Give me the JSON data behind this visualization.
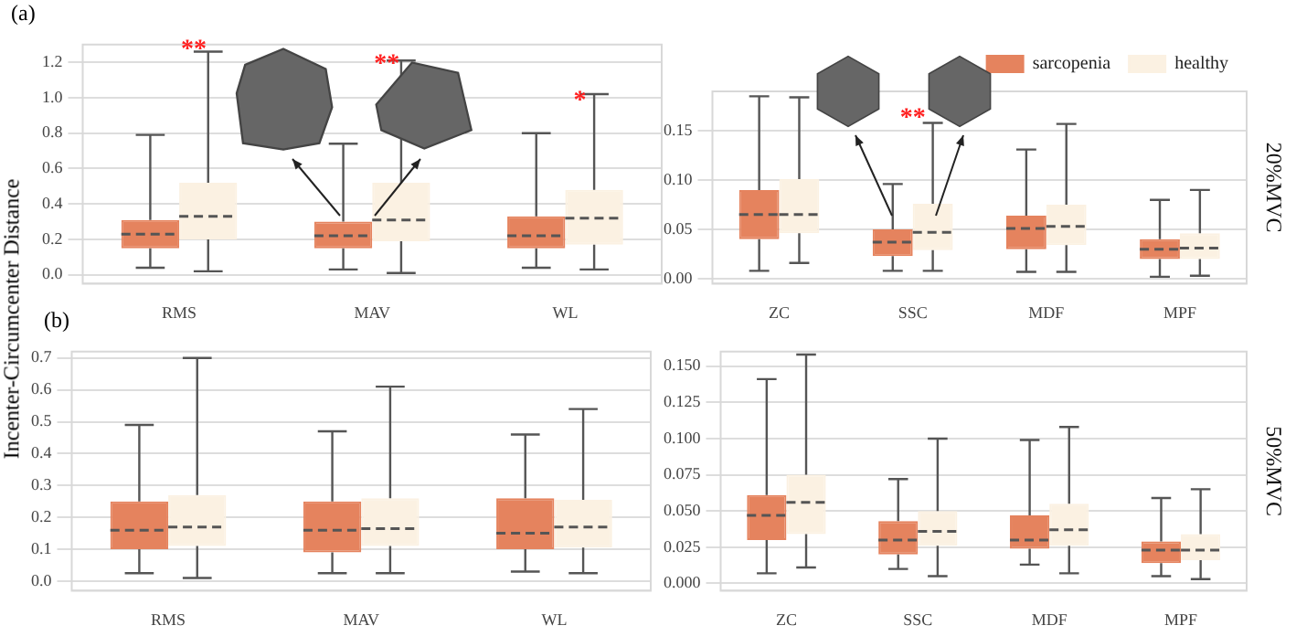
{
  "chart_data": [
    {
      "type": "box",
      "title": "(a)",
      "ylabel": "Incenter-Circumcenter Distance",
      "categories": [
        "RMS",
        "MAV",
        "WL"
      ],
      "ylim": [
        -0.05,
        1.3
      ],
      "yticks": [
        {
          "value": 0,
          "label": "0.0"
        },
        {
          "value": 0.2,
          "label": "0.2"
        },
        {
          "value": 0.4,
          "label": "0.4"
        },
        {
          "value": 0.6,
          "label": "0.6"
        },
        {
          "value": 0.8,
          "label": "0.8"
        },
        {
          "value": 1,
          "label": "1.0"
        },
        {
          "value": 1.2,
          "label": "1.2"
        }
      ],
      "grid": "y",
      "legend": false,
      "series": [
        {
          "color": "#e5835e",
          "boxes": [
            {
              "low": 0.04,
              "q1": 0.15,
              "median": 0.23,
              "q3": 0.31,
              "high": 0.79
            },
            {
              "low": 0.03,
              "q1": 0.15,
              "median": 0.22,
              "q3": 0.3,
              "high": 0.74
            },
            {
              "low": 0.04,
              "q1": 0.15,
              "median": 0.22,
              "q3": 0.33,
              "high": 0.8
            }
          ]
        },
        {
          "color": "#fbf1e2",
          "boxes": [
            {
              "low": 0.02,
              "q1": 0.2,
              "median": 0.33,
              "q3": 0.52,
              "high": 1.26
            },
            {
              "low": 0.01,
              "q1": 0.19,
              "median": 0.31,
              "q3": 0.52,
              "high": 1.21
            },
            {
              "low": 0.03,
              "q1": 0.17,
              "median": 0.32,
              "q3": 0.48,
              "high": 1.02
            }
          ]
        }
      ],
      "annotations": [
        "**",
        "**",
        "*"
      ]
    },
    {
      "type": "box",
      "categories": [
        "ZC",
        "SSC",
        "MDF",
        "MPF"
      ],
      "ylim": [
        -0.005,
        0.19
      ],
      "yticks": [
        {
          "value": 0,
          "label": "0.00"
        },
        {
          "value": 0.05,
          "label": "0.05"
        },
        {
          "value": 0.1,
          "label": "0.10"
        },
        {
          "value": 0.15,
          "label": "0.15"
        }
      ],
      "grid": "y",
      "legend": "top right",
      "series": [
        {
          "name": "sarcopenia",
          "color": "#e5835e",
          "boxes": [
            {
              "low": 0.008,
              "q1": 0.04,
              "median": 0.065,
              "q3": 0.09,
              "high": 0.185
            },
            {
              "low": 0.008,
              "q1": 0.023,
              "median": 0.037,
              "q3": 0.05,
              "high": 0.096
            },
            {
              "low": 0.007,
              "q1": 0.03,
              "median": 0.051,
              "q3": 0.064,
              "high": 0.131
            },
            {
              "low": 0.002,
              "q1": 0.02,
              "median": 0.03,
              "q3": 0.04,
              "high": 0.08
            }
          ]
        },
        {
          "name": "healthy",
          "color": "#fbf1e2",
          "boxes": [
            {
              "low": 0.016,
              "q1": 0.046,
              "median": 0.065,
              "q3": 0.101,
              "high": 0.184
            },
            {
              "low": 0.008,
              "q1": 0.029,
              "median": 0.047,
              "q3": 0.076,
              "high": 0.158
            },
            {
              "low": 0.007,
              "q1": 0.034,
              "median": 0.053,
              "q3": 0.075,
              "high": 0.157
            },
            {
              "low": 0.003,
              "q1": 0.02,
              "median": 0.031,
              "q3": 0.046,
              "high": 0.09
            }
          ]
        }
      ],
      "annotations": [
        "20%MVC",
        "**"
      ]
    },
    {
      "type": "box",
      "title": "(b)",
      "categories": [
        "RMS",
        "MAV",
        "WL"
      ],
      "ylim": [
        -0.03,
        0.72
      ],
      "yticks": [
        {
          "value": 0,
          "label": "0.0"
        },
        0.1,
        0.2,
        0.3,
        0.4,
        0.5,
        0.6,
        0.7
      ],
      "grid": "y",
      "legend": false,
      "series": [
        {
          "color": "#e5835e",
          "boxes": [
            {
              "low": 0.025,
              "q1": 0.1,
              "median": 0.16,
              "q3": 0.25,
              "high": 0.49
            },
            {
              "low": 0.025,
              "q1": 0.09,
              "median": 0.16,
              "q3": 0.25,
              "high": 0.47
            },
            {
              "low": 0.03,
              "q1": 0.1,
              "median": 0.15,
              "q3": 0.26,
              "high": 0.46
            }
          ]
        },
        {
          "color": "#fbf1e2",
          "boxes": [
            {
              "low": 0.01,
              "q1": 0.11,
              "median": 0.17,
              "q3": 0.27,
              "high": 0.7
            },
            {
              "low": 0.025,
              "q1": 0.11,
              "median": 0.165,
              "q3": 0.26,
              "high": 0.61
            },
            {
              "low": 0.025,
              "q1": 0.105,
              "median": 0.17,
              "q3": 0.255,
              "high": 0.54
            }
          ]
        }
      ]
    },
    {
      "type": "box",
      "categories": [
        "ZC",
        "SSC",
        "MDF",
        "MPF"
      ],
      "ylim": [
        -0.005,
        0.16
      ],
      "yticks": [
        {
          "value": 0,
          "label": "0.000"
        },
        {
          "value": 0.025,
          "label": "0.025"
        },
        {
          "value": 0.05,
          "label": "0.050"
        },
        {
          "value": 0.075,
          "label": "0.075"
        },
        {
          "value": 0.1,
          "label": "0.100"
        },
        {
          "value": 0.125,
          "label": "0.125"
        },
        {
          "value": 0.15,
          "label": "0.150"
        }
      ],
      "grid": "y",
      "legend": false,
      "series": [
        {
          "color": "#e5835e",
          "boxes": [
            {
              "low": 0.007,
              "q1": 0.03,
              "median": 0.047,
              "q3": 0.061,
              "high": 0.141
            },
            {
              "low": 0.01,
              "q1": 0.02,
              "median": 0.03,
              "q3": 0.043,
              "high": 0.072
            },
            {
              "low": 0.013,
              "q1": 0.024,
              "median": 0.03,
              "q3": 0.047,
              "high": 0.099
            },
            {
              "low": 0.005,
              "q1": 0.014,
              "median": 0.023,
              "q3": 0.029,
              "high": 0.059
            }
          ]
        },
        {
          "color": "#fbf1e2",
          "boxes": [
            {
              "low": 0.011,
              "q1": 0.034,
              "median": 0.056,
              "q3": 0.075,
              "high": 0.158
            },
            {
              "low": 0.005,
              "q1": 0.026,
              "median": 0.036,
              "q3": 0.05,
              "high": 0.1
            },
            {
              "low": 0.007,
              "q1": 0.026,
              "median": 0.037,
              "q3": 0.055,
              "high": 0.108
            },
            {
              "low": 0.003,
              "q1": 0.016,
              "median": 0.023,
              "q3": 0.034,
              "high": 0.065
            }
          ]
        }
      ],
      "annotations": [
        "50%MVC"
      ]
    }
  ]
}
